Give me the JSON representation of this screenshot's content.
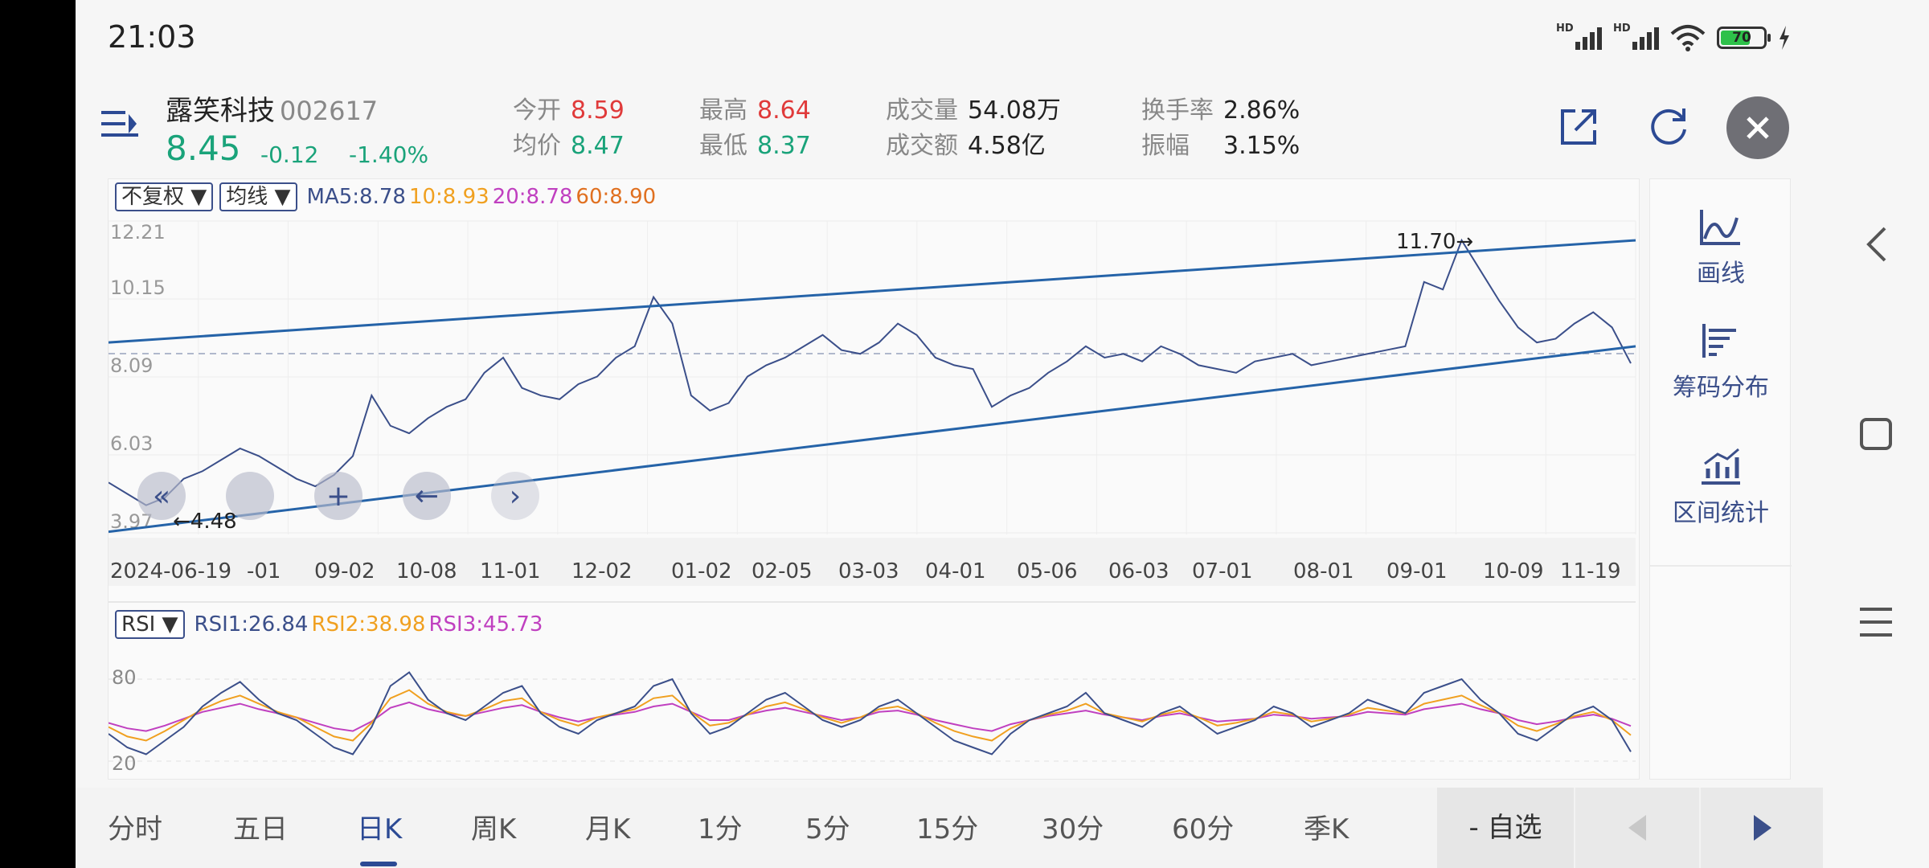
{
  "status_bar": {
    "time": "21:03",
    "hd1": "HD",
    "hd2": "HD",
    "battery": "70"
  },
  "stock": {
    "name": "露笑科技",
    "code": "002617",
    "price": "8.45",
    "change": "-0.12",
    "change_pct": "-1.40%"
  },
  "quote": {
    "open_label": "今开",
    "open": "8.59",
    "avg_label": "均价",
    "avg": "8.47",
    "high_label": "最高",
    "high": "8.64",
    "low_label": "最低",
    "low": "8.37",
    "volume_label": "成交量",
    "volume": "54.08万",
    "amount_label": "成交额",
    "amount": "4.58亿",
    "turnover_label": "换手率",
    "turnover": "2.86%",
    "amplitude_label": "振幅",
    "amplitude": "3.15%"
  },
  "header_icons": [
    "share-icon",
    "refresh-icon",
    "close-icon"
  ],
  "chart_toolbar": {
    "adjust": "不复权 ▼",
    "avg_line": "均线 ▼"
  },
  "ma_legend": [
    {
      "text": "MA5:8.78",
      "color": "#3b4f8a"
    },
    {
      "text": "10:8.93",
      "color": "#f0a020"
    },
    {
      "text": "20:8.78",
      "color": "#c040c0"
    },
    {
      "text": "60:8.90",
      "color": "#e07020"
    }
  ],
  "rsi_legend": {
    "selector": "RSI ▼",
    "items": [
      {
        "text": "RSI1:26.84",
        "color": "#3b4f8a"
      },
      {
        "text": "RSI2:38.98",
        "color": "#f0a020"
      },
      {
        "text": "RSI3:45.73",
        "color": "#c040c0"
      }
    ]
  },
  "chart_data": {
    "type": "line",
    "y_ticks": [
      "12.21",
      "10.15",
      "8.09",
      "6.03",
      "3.97"
    ],
    "ylim": [
      3.97,
      12.21
    ],
    "x_labels": [
      "2024-06-19",
      "-01",
      "09-02",
      "10-08",
      "11-01",
      "12-02",
      "01-02",
      "02-05",
      "03-03",
      "04-01",
      "05-06",
      "06-03",
      "07-01",
      "08-01",
      "09-01",
      "10-09",
      "11-19"
    ],
    "annotations": {
      "high": "11.70→",
      "low": "←4.48"
    },
    "price_series": [
      5.3,
      5.0,
      4.7,
      4.9,
      5.4,
      5.6,
      5.9,
      6.2,
      6.0,
      5.7,
      5.4,
      5.2,
      5.5,
      6.0,
      7.6,
      6.8,
      6.6,
      7.0,
      7.3,
      7.5,
      8.2,
      8.6,
      7.8,
      7.6,
      7.5,
      7.9,
      8.1,
      8.6,
      8.9,
      10.2,
      9.5,
      7.6,
      7.2,
      7.4,
      8.1,
      8.4,
      8.6,
      8.9,
      9.2,
      8.8,
      8.7,
      9.0,
      9.5,
      9.2,
      8.6,
      8.4,
      8.3,
      7.3,
      7.6,
      7.8,
      8.2,
      8.5,
      8.9,
      8.6,
      8.7,
      8.5,
      8.9,
      8.7,
      8.4,
      8.3,
      8.2,
      8.5,
      8.6,
      8.7,
      8.4,
      8.5,
      8.6,
      8.7,
      8.8,
      8.9,
      10.6,
      10.4,
      11.7,
      10.9,
      10.1,
      9.4,
      9.0,
      9.1,
      9.5,
      9.8,
      9.4,
      8.45
    ],
    "channel_upper": {
      "start": 9.0,
      "end": 11.7
    },
    "channel_lower": {
      "start": 4.0,
      "end": 8.9
    },
    "rsi": {
      "ylabels": [
        "80",
        "20"
      ],
      "rsi1": [
        40,
        30,
        25,
        35,
        45,
        60,
        70,
        78,
        65,
        55,
        50,
        40,
        30,
        25,
        45,
        75,
        85,
        65,
        55,
        50,
        60,
        70,
        75,
        55,
        45,
        40,
        50,
        55,
        60,
        75,
        80,
        55,
        40,
        45,
        55,
        65,
        70,
        60,
        50,
        45,
        50,
        60,
        65,
        55,
        45,
        35,
        30,
        25,
        40,
        50,
        55,
        60,
        70,
        55,
        50,
        45,
        55,
        60,
        50,
        40,
        45,
        50,
        60,
        55,
        45,
        50,
        55,
        65,
        60,
        55,
        70,
        75,
        80,
        65,
        55,
        40,
        35,
        45,
        55,
        60,
        50,
        26.84
      ],
      "rsi2": [
        45,
        38,
        35,
        42,
        50,
        58,
        64,
        68,
        62,
        56,
        52,
        45,
        38,
        35,
        48,
        66,
        72,
        62,
        56,
        53,
        58,
        64,
        66,
        56,
        50,
        46,
        52,
        55,
        58,
        66,
        68,
        56,
        46,
        48,
        54,
        60,
        63,
        58,
        52,
        48,
        52,
        58,
        60,
        55,
        48,
        42,
        38,
        35,
        44,
        50,
        54,
        57,
        62,
        55,
        52,
        49,
        54,
        57,
        52,
        46,
        48,
        51,
        56,
        54,
        49,
        51,
        54,
        59,
        57,
        55,
        62,
        65,
        68,
        61,
        55,
        46,
        42,
        47,
        53,
        56,
        50,
        38.98
      ],
      "rsi3": [
        48,
        44,
        42,
        46,
        51,
        56,
        59,
        62,
        58,
        55,
        52,
        48,
        44,
        42,
        49,
        59,
        63,
        58,
        55,
        53,
        56,
        59,
        61,
        56,
        52,
        49,
        52,
        54,
        56,
        60,
        62,
        56,
        50,
        50,
        54,
        57,
        59,
        56,
        53,
        50,
        52,
        56,
        57,
        54,
        50,
        47,
        44,
        42,
        47,
        50,
        53,
        55,
        57,
        54,
        52,
        50,
        53,
        55,
        52,
        49,
        50,
        51,
        54,
        53,
        51,
        52,
        53,
        56,
        55,
        54,
        58,
        60,
        62,
        58,
        55,
        50,
        47,
        49,
        52,
        54,
        51,
        45.73
      ]
    }
  },
  "side_panel": [
    {
      "label": "画线",
      "icon": "draw-line-icon"
    },
    {
      "label": "筹码分布",
      "icon": "chip-distribution-icon"
    },
    {
      "label": "区间统计",
      "icon": "range-stats-icon"
    }
  ],
  "tabs": [
    "分时",
    "五日",
    "日K",
    "周K",
    "月K",
    "1分",
    "5分",
    "15分",
    "30分",
    "60分",
    "季K"
  ],
  "active_tab": "日K",
  "watchlist_button": "- 自选"
}
